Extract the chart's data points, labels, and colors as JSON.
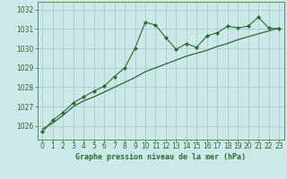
{
  "title": "Graphe pression niveau de la mer (hPa)",
  "bg_color": "#cce8e8",
  "grid_color": "#aacccc",
  "line_color": "#2d6a2d",
  "xlim": [
    -0.5,
    23.5
  ],
  "ylim": [
    1025.3,
    1032.4
  ],
  "xticks": [
    0,
    1,
    2,
    3,
    4,
    5,
    6,
    7,
    8,
    9,
    10,
    11,
    12,
    13,
    14,
    15,
    16,
    17,
    18,
    19,
    20,
    21,
    22,
    23
  ],
  "yticks": [
    1026,
    1027,
    1028,
    1029,
    1030,
    1031,
    1032
  ],
  "hourly_x": [
    0,
    1,
    2,
    3,
    4,
    5,
    6,
    7,
    8,
    9,
    10,
    11,
    12,
    13,
    14,
    15,
    16,
    17,
    18,
    19,
    20,
    21,
    22,
    23
  ],
  "hourly_y": [
    1025.7,
    1026.3,
    1026.7,
    1027.2,
    1027.5,
    1027.8,
    1028.05,
    1028.55,
    1029.0,
    1030.0,
    1031.35,
    1031.2,
    1030.55,
    1029.95,
    1030.25,
    1030.05,
    1030.65,
    1030.8,
    1031.15,
    1031.05,
    1031.15,
    1031.6,
    1031.05,
    1031.0
  ],
  "trend_x": [
    0,
    1,
    2,
    3,
    4,
    5,
    6,
    7,
    8,
    9,
    10,
    11,
    12,
    13,
    14,
    15,
    16,
    17,
    18,
    19,
    20,
    21,
    22,
    23
  ],
  "trend_y": [
    1025.85,
    1026.15,
    1026.55,
    1027.0,
    1027.3,
    1027.5,
    1027.75,
    1028.0,
    1028.25,
    1028.5,
    1028.8,
    1029.0,
    1029.2,
    1029.4,
    1029.6,
    1029.75,
    1029.9,
    1030.1,
    1030.25,
    1030.45,
    1030.6,
    1030.75,
    1030.9,
    1031.05
  ],
  "xlabel_fontsize": 6.0,
  "tick_fontsize": 5.5
}
